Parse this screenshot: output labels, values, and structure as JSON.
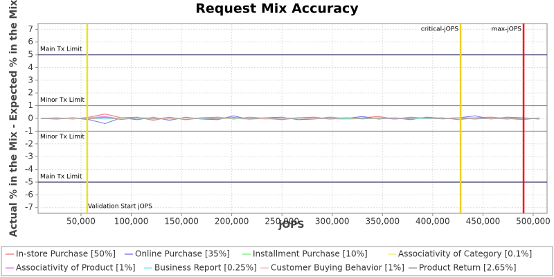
{
  "chart_data": {
    "type": "line",
    "title": "Request Mix Accuracy",
    "x_label": "jOPS",
    "y_label": "Actual % in the Mix - Expected % in the Mix",
    "xlim": [
      7300,
      513800
    ],
    "ylim": [
      -7.45,
      7.45
    ],
    "xticks": [
      {
        "value": 50000,
        "label": "50,000"
      },
      {
        "value": 100000,
        "label": "100,000"
      },
      {
        "value": 150000,
        "label": "150,000"
      },
      {
        "value": 200000,
        "label": "200,000"
      },
      {
        "value": 250000,
        "label": "250,000"
      },
      {
        "value": 300000,
        "label": "300,000"
      },
      {
        "value": 350000,
        "label": "350,000"
      },
      {
        "value": 400000,
        "label": "400,000"
      },
      {
        "value": 450000,
        "label": "450,000"
      },
      {
        "value": 500000,
        "label": "500,000"
      }
    ],
    "yticks": [
      -7,
      -6,
      -5,
      -4,
      -3,
      -2,
      -1,
      0,
      1,
      2,
      3,
      4,
      5,
      6,
      7
    ],
    "hlines": [
      {
        "value": 5,
        "label": "Main Tx Limit",
        "color": "#000040"
      },
      {
        "value": 1,
        "label": "Minor Tx Limit",
        "color": "#808080"
      },
      {
        "value": -1,
        "label": "Minor Tx Limit",
        "color": "#808080"
      },
      {
        "value": -5,
        "label": "Main Tx Limit",
        "color": "#000040"
      }
    ],
    "vlines": [
      {
        "value": 56200,
        "label": "Validation Start jOPS",
        "color": "#f0e020"
      },
      {
        "value": 427700,
        "label": "critical-jOPS",
        "color": "#f0d020"
      },
      {
        "value": 490400,
        "label": "max-jOPS",
        "color": "#ff0000"
      }
    ],
    "x": [
      10000,
      26000,
      42000,
      58000,
      74000,
      90000,
      106000,
      122000,
      138000,
      154000,
      170000,
      186000,
      202000,
      218000,
      234000,
      250000,
      266000,
      282000,
      298000,
      314000,
      330000,
      346000,
      362000,
      378000,
      394000,
      410000,
      426000,
      442000,
      458000,
      474000,
      490000,
      506000
    ],
    "series": [
      {
        "name": "In-store Purchase [50%]",
        "color": "#f08080",
        "values": [
          0,
          0.05,
          -0.05,
          0.1,
          0.35,
          0.05,
          0.1,
          -0.15,
          0.1,
          -0.1,
          0.05,
          0.1,
          -0.05,
          0.1,
          0,
          -0.1,
          0.05,
          0.1,
          -0.05,
          0,
          0.05,
          0.15,
          -0.05,
          0.1,
          0,
          0.05,
          -0.1,
          0.05,
          0.1,
          0,
          -0.1,
          0.05
        ]
      },
      {
        "name": "Online Purchase [35%]",
        "color": "#8080f0",
        "values": [
          0,
          -0.05,
          0.05,
          -0.1,
          -0.4,
          0.05,
          -0.1,
          0.1,
          -0.15,
          0.1,
          -0.05,
          -0.1,
          0.2,
          -0.1,
          0.05,
          0.1,
          -0.1,
          -0.05,
          0.1,
          0,
          0.15,
          -0.05,
          0.05,
          -0.1,
          0.1,
          0,
          0.05,
          0.2,
          -0.05,
          0.1,
          0.05,
          -0.05
        ]
      },
      {
        "name": "Installment Purchase [10%]",
        "color": "#80f080",
        "values": [
          0,
          0.02,
          -0.03,
          0.05,
          0.1,
          -0.05,
          0.05,
          0.03,
          -0.05,
          0.02,
          -0.03,
          0.05,
          -0.02,
          0.03,
          -0.05,
          0.02,
          0.04,
          -0.03,
          0.02,
          -0.04,
          0.03,
          -0.02,
          0.05,
          -0.03,
          0.02,
          -0.02,
          0.03,
          -0.04,
          0.02,
          0.03,
          -0.02,
          0.02
        ]
      },
      {
        "name": "Associativity of Category [0.1%]",
        "color": "#f0f080",
        "values": [
          0,
          0.01,
          -0.02,
          0.02,
          -0.05,
          0.02,
          0.01,
          -0.02,
          0.03,
          -0.01,
          0.02,
          -0.02,
          0.01,
          -0.1,
          0.02,
          -0.05,
          0.01,
          0.02,
          -0.02,
          -0.1,
          0.01,
          0.02,
          -0.01,
          0.02,
          -0.02,
          0.01,
          0.02,
          -0.01,
          0.02,
          -0.02,
          0.01,
          0
        ]
      },
      {
        "name": "Associativity of Product [1%]",
        "color": "#f080f0",
        "values": [
          0,
          0.03,
          -0.02,
          0.05,
          0.15,
          -0.05,
          0.03,
          0.02,
          -0.03,
          0.05,
          -0.02,
          0.03,
          0.02,
          -0.03,
          0.05,
          -0.02,
          0.03,
          -0.04,
          0.02,
          0.05,
          -0.03,
          0.02,
          0.03,
          -0.02,
          0.04,
          -0.03,
          0.02,
          0.05,
          -0.02,
          0.03,
          -0.02,
          0.02
        ]
      },
      {
        "name": "Business Report [0.25%]",
        "color": "#80f0f0",
        "values": [
          0,
          0.01,
          -0.01,
          0.02,
          -0.03,
          0.01,
          0.02,
          -0.01,
          0.01,
          0.02,
          -0.01,
          0.01,
          0.02,
          -0.02,
          0.01,
          0.01,
          -0.01,
          0.02,
          0.01,
          -0.01,
          0.01,
          0.02,
          -0.01,
          0.01,
          -0.02,
          0.01,
          0.01,
          0.02,
          -0.01,
          0.01,
          0.01,
          0
        ]
      },
      {
        "name": "Customer Buying Behavior [1%]",
        "color": "#f8c0c0",
        "values": [
          0,
          0.02,
          -0.02,
          0.03,
          0.05,
          -0.02,
          0.03,
          0.05,
          -0.03,
          0.02,
          0.04,
          -0.02,
          0.03,
          0.02,
          -0.03,
          0.04,
          0.02,
          -0.02,
          0.03,
          0.05,
          -0.02,
          0.02,
          -0.03,
          0.04,
          0.02,
          -0.02,
          0.03,
          0.02,
          -0.03,
          0.02,
          0.04,
          -0.02
        ]
      },
      {
        "name": "Product Return [2.65%]",
        "color": "#a0a0a0",
        "values": [
          0,
          -0.03,
          0.05,
          -0.05,
          0.1,
          -0.08,
          0.05,
          -0.05,
          0.08,
          -0.1,
          0.05,
          -0.05,
          0.08,
          -0.05,
          0.05,
          -0.08,
          0.05,
          0.03,
          -0.05,
          0.05,
          -0.03,
          0.05,
          -0.05,
          0.03,
          0.05,
          -0.03,
          0.05,
          -0.05,
          0.03,
          -0.05,
          0.05,
          -0.03
        ]
      }
    ]
  }
}
